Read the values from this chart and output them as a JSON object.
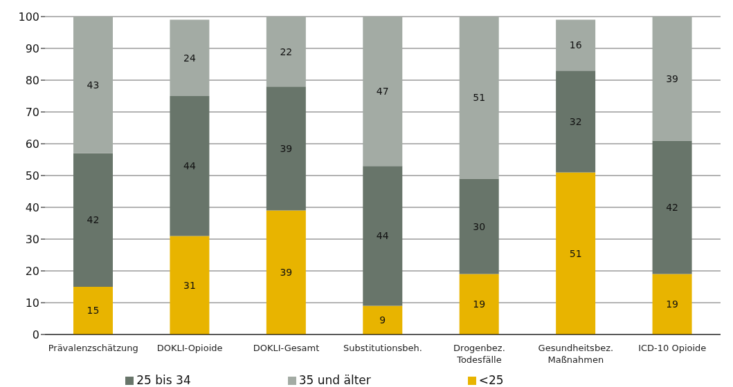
{
  "chart_data": {
    "type": "bar",
    "stacked": true,
    "categories": [
      "Prävalenzschätzung",
      "DOKLI-Opioide",
      "DOKLI-Gesamt",
      "Substitutionsbeh.",
      "Drogenbez. Todesfälle",
      "Gesundheitsbez. Maßnahmen",
      "ICD-10 Opioide"
    ],
    "series": [
      {
        "name": "<25",
        "color": "#e8b400",
        "values": [
          15,
          31,
          39,
          9,
          19,
          51,
          19
        ]
      },
      {
        "name": "25 bis 34",
        "color": "#68756a",
        "values": [
          42,
          44,
          39,
          44,
          30,
          32,
          42
        ]
      },
      {
        "name": "35 und älter",
        "color": "#a3aba4",
        "values": [
          43,
          24,
          22,
          47,
          51,
          16,
          39
        ]
      }
    ],
    "ylim": [
      0,
      100
    ],
    "yticks": [
      0,
      10,
      20,
      30,
      40,
      50,
      60,
      70,
      80,
      90,
      100
    ],
    "grid": "y",
    "legend": "bottom",
    "data_labels": true
  }
}
